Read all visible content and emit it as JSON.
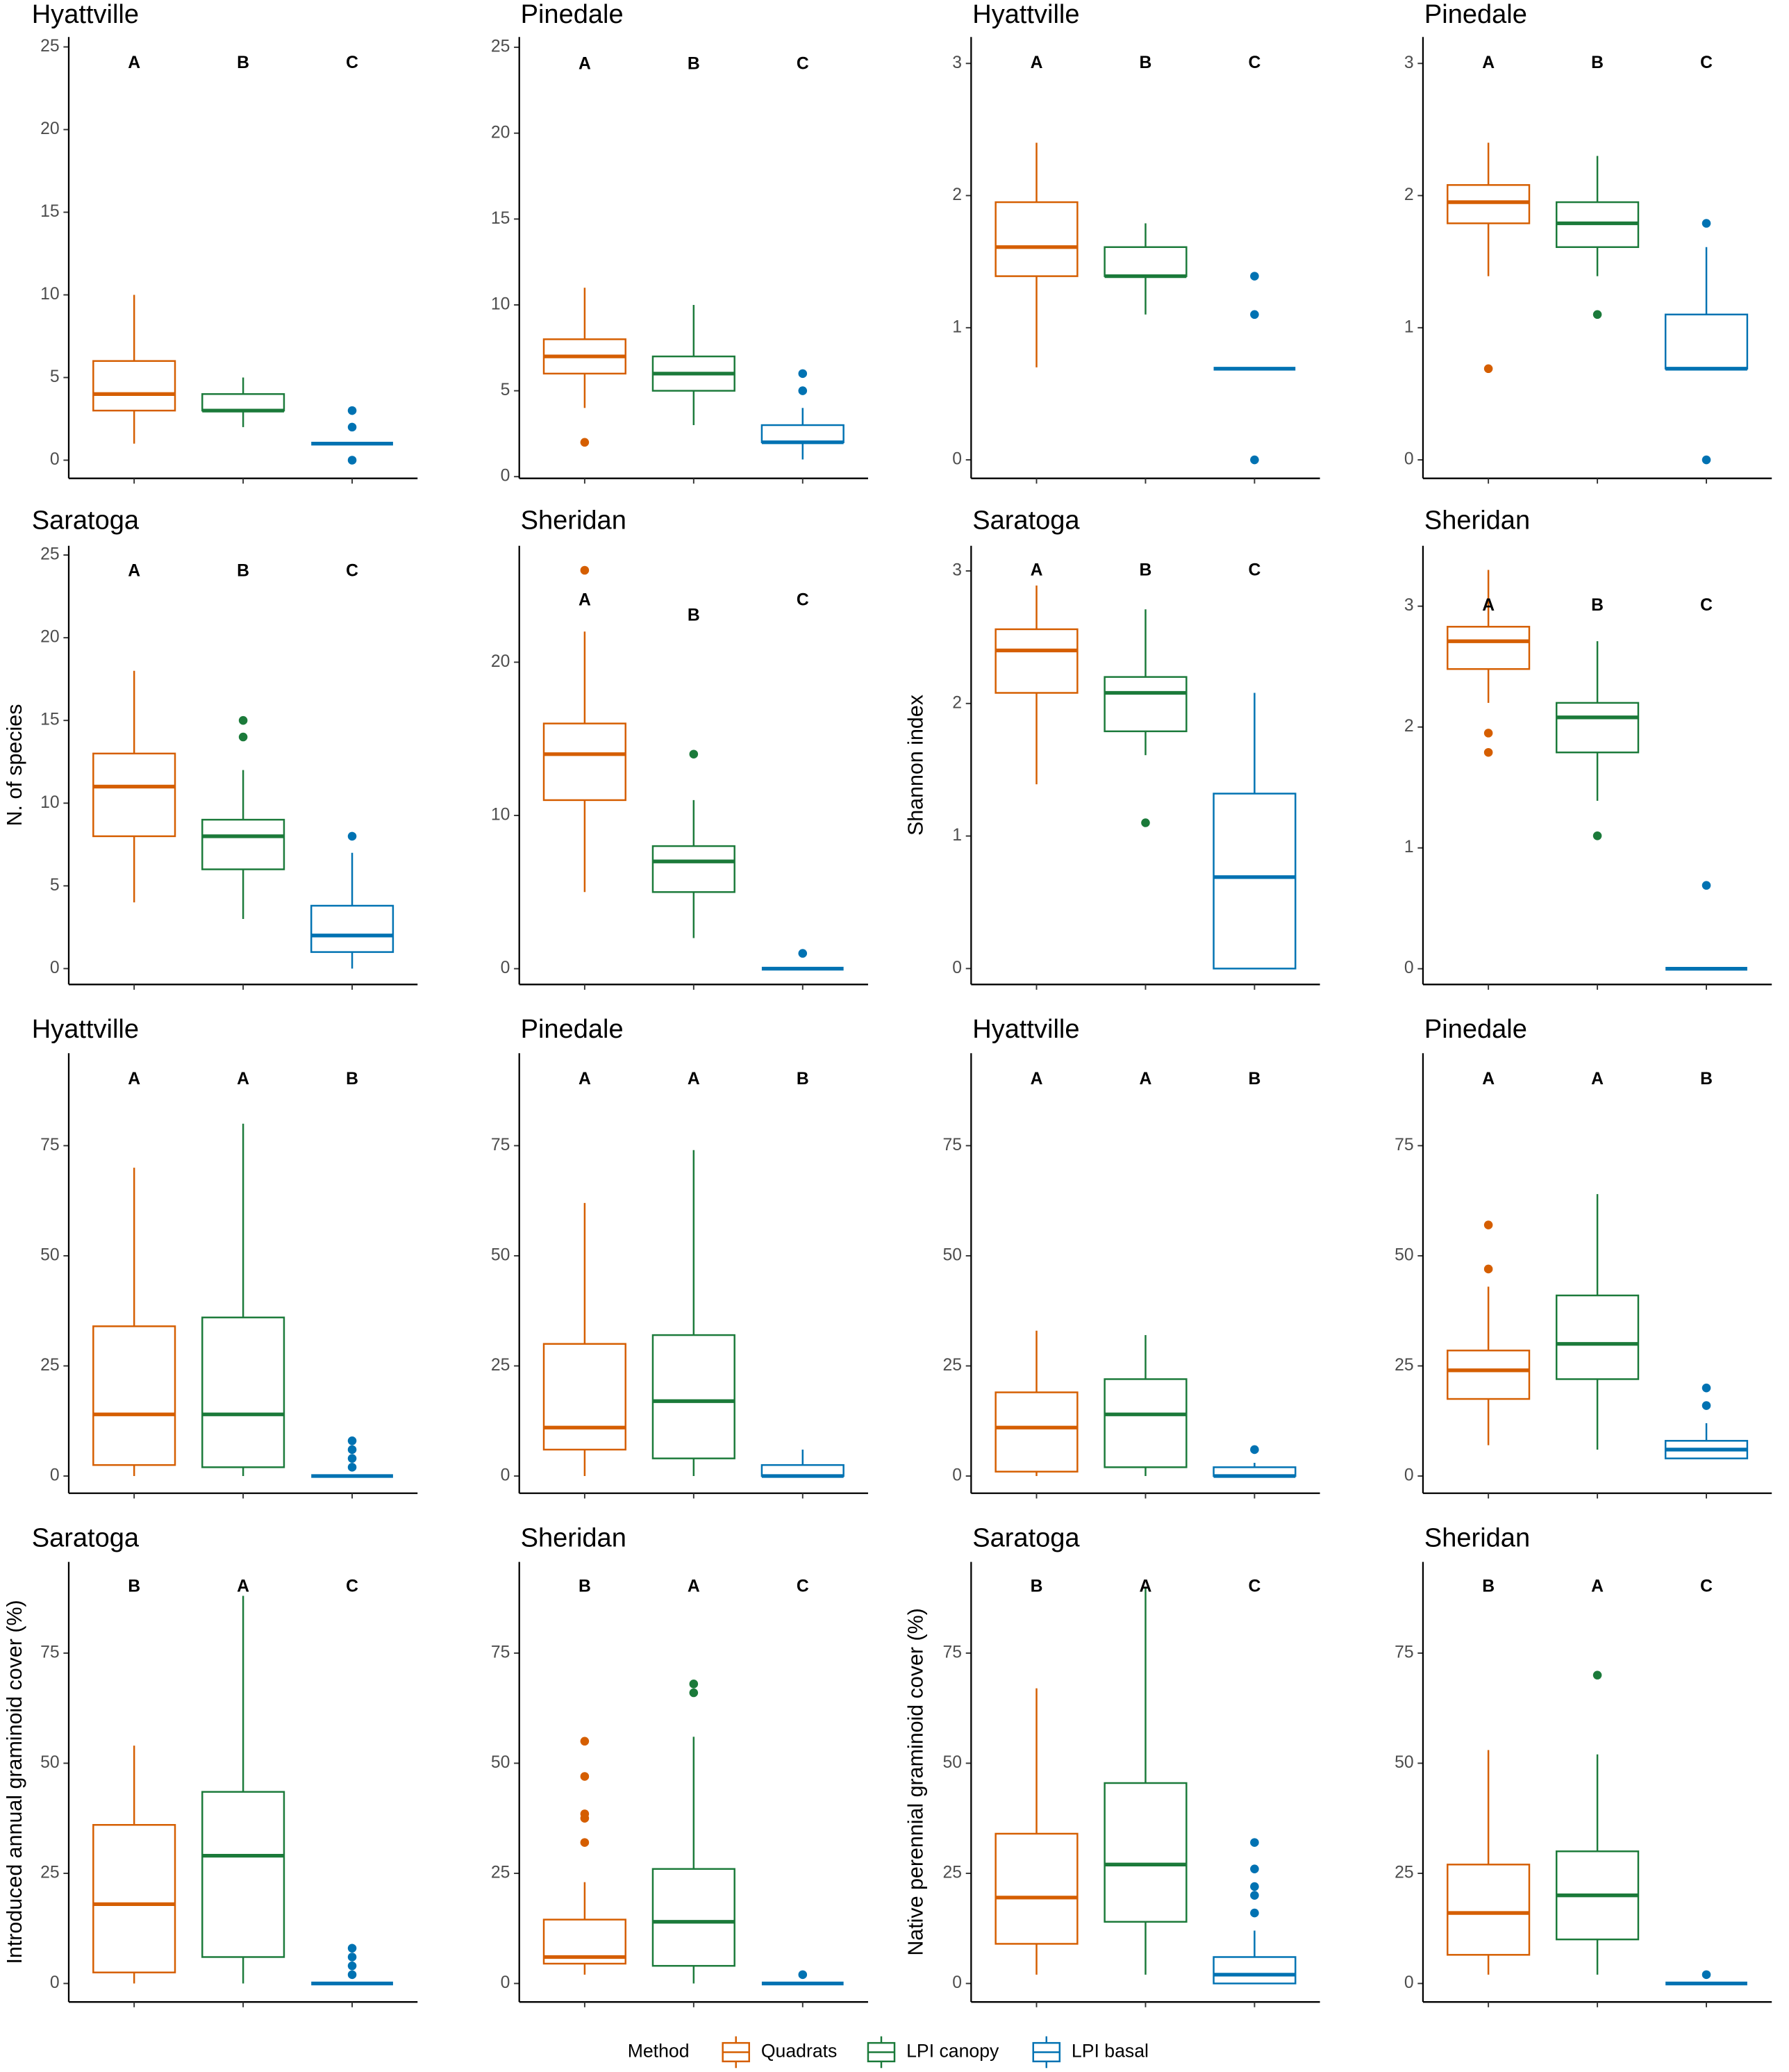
{
  "legend": {
    "title": "Method",
    "entries": [
      {
        "name": "Quadrats",
        "color": "#D55E00"
      },
      {
        "name": "LPI canopy",
        "color": "#1B7A3A"
      },
      {
        "name": "LPI basal",
        "color": "#0072B2"
      }
    ]
  },
  "chart_data": [
    {
      "type": "box",
      "title": "Hyattville",
      "ylim": [
        -1.1,
        25.6
      ],
      "yticks": [
        0,
        5,
        10,
        15,
        20,
        25
      ],
      "letters": [
        {
          "text": "A",
          "y": 24
        },
        {
          "text": "B",
          "y": 24
        },
        {
          "text": "C",
          "y": 24
        }
      ],
      "boxes": [
        {
          "min": 1,
          "q1": 3,
          "median": 4,
          "q3": 6,
          "max": 10,
          "outliers": []
        },
        {
          "min": 2,
          "q1": 3,
          "median": 3,
          "q3": 4,
          "max": 5,
          "outliers": []
        },
        {
          "min": 1,
          "q1": 1,
          "median": 1,
          "q3": 1,
          "max": 1,
          "outliers": [
            0,
            2,
            3
          ]
        }
      ]
    },
    {
      "type": "box",
      "title": "Pinedale",
      "ylim": [
        -0.1,
        25.6
      ],
      "yticks": [
        0,
        5,
        10,
        15,
        20,
        25
      ],
      "letters": [
        {
          "text": "A",
          "y": 24
        },
        {
          "text": "B",
          "y": 24
        },
        {
          "text": "C",
          "y": 24
        }
      ],
      "boxes": [
        {
          "min": 4,
          "q1": 6,
          "median": 7,
          "q3": 8,
          "max": 11,
          "outliers": [
            2
          ]
        },
        {
          "min": 3,
          "q1": 5,
          "median": 6,
          "q3": 7,
          "max": 10,
          "outliers": []
        },
        {
          "min": 1,
          "q1": 2,
          "median": 2,
          "q3": 3,
          "max": 4,
          "outliers": [
            5,
            6
          ]
        }
      ]
    },
    {
      "type": "box",
      "title": "Hyattville",
      "ylim": [
        -0.14,
        3.2
      ],
      "yticks": [
        0,
        1,
        2,
        3
      ],
      "letters": [
        {
          "text": "A",
          "y": 3
        },
        {
          "text": "B",
          "y": 3
        },
        {
          "text": "C",
          "y": 3
        }
      ],
      "boxes": [
        {
          "min": 0.7,
          "q1": 1.39,
          "median": 1.61,
          "q3": 1.95,
          "max": 2.4,
          "outliers": []
        },
        {
          "min": 1.1,
          "q1": 1.39,
          "median": 1.39,
          "q3": 1.61,
          "max": 1.79,
          "outliers": []
        },
        {
          "min": 0.69,
          "q1": 0.69,
          "median": 0.69,
          "q3": 0.69,
          "max": 0.69,
          "outliers": [
            0,
            1.1,
            1.39
          ]
        }
      ]
    },
    {
      "type": "box",
      "title": "Pinedale",
      "ylim": [
        -0.14,
        3.2
      ],
      "yticks": [
        0,
        1,
        2,
        3
      ],
      "letters": [
        {
          "text": "A",
          "y": 3
        },
        {
          "text": "B",
          "y": 3
        },
        {
          "text": "C",
          "y": 3
        }
      ],
      "boxes": [
        {
          "min": 1.39,
          "q1": 1.79,
          "median": 1.95,
          "q3": 2.08,
          "max": 2.4,
          "outliers": [
            0.69
          ]
        },
        {
          "min": 1.39,
          "q1": 1.61,
          "median": 1.79,
          "q3": 1.95,
          "max": 2.3,
          "outliers": [
            1.1
          ]
        },
        {
          "min": 0.69,
          "q1": 0.69,
          "median": 0.69,
          "q3": 1.1,
          "max": 1.61,
          "outliers": [
            0,
            1.79
          ]
        }
      ]
    },
    {
      "type": "box",
      "title": "Saratoga",
      "ylabel": "N. of species",
      "ylim": [
        -0.96,
        25.56
      ],
      "yticks": [
        0,
        5,
        10,
        15,
        20,
        25
      ],
      "letters": [
        {
          "text": "A",
          "y": 24
        },
        {
          "text": "B",
          "y": 24
        },
        {
          "text": "C",
          "y": 24
        }
      ],
      "boxes": [
        {
          "min": 4,
          "q1": 8,
          "median": 11,
          "q3": 13,
          "max": 18,
          "outliers": []
        },
        {
          "min": 3,
          "q1": 6,
          "median": 8,
          "q3": 9,
          "max": 12,
          "outliers": [
            14,
            15
          ]
        },
        {
          "min": 0,
          "q1": 1,
          "median": 2,
          "q3": 3.8,
          "max": 7,
          "outliers": [
            8
          ]
        }
      ]
    },
    {
      "type": "box",
      "title": "Sheridan",
      "ylim": [
        -1.03,
        27.6
      ],
      "yticks": [
        0,
        10,
        20
      ],
      "letters": [
        {
          "text": "A",
          "y": 24
        },
        {
          "text": "B",
          "y": 23
        },
        {
          "text": "C",
          "y": 24
        }
      ],
      "boxes": [
        {
          "min": 5,
          "q1": 11,
          "median": 14,
          "q3": 16,
          "max": 22,
          "outliers": [
            26
          ]
        },
        {
          "min": 2,
          "q1": 5,
          "median": 7,
          "q3": 8,
          "max": 11,
          "outliers": [
            14
          ]
        },
        {
          "min": 0,
          "q1": 0,
          "median": 0,
          "q3": 0,
          "max": 0,
          "outliers": [
            1
          ]
        }
      ]
    },
    {
      "type": "box",
      "title": "Saratoga",
      "ylabel": "Shannon index",
      "ylim": [
        -0.12,
        3.19
      ],
      "yticks": [
        0,
        1,
        2,
        3
      ],
      "letters": [
        {
          "text": "A",
          "y": 3
        },
        {
          "text": "B",
          "y": 3
        },
        {
          "text": "C",
          "y": 3
        }
      ],
      "boxes": [
        {
          "min": 1.39,
          "q1": 2.08,
          "median": 2.4,
          "q3": 2.56,
          "max": 2.89,
          "outliers": []
        },
        {
          "min": 1.61,
          "q1": 1.79,
          "median": 2.08,
          "q3": 2.2,
          "max": 2.71,
          "outliers": [
            1.1
          ]
        },
        {
          "min": 0,
          "q1": 0,
          "median": 0.69,
          "q3": 1.32,
          "max": 2.08,
          "outliers": []
        }
      ]
    },
    {
      "type": "box",
      "title": "Sheridan",
      "ylim": [
        -0.13,
        3.5
      ],
      "yticks": [
        0,
        1,
        2,
        3
      ],
      "letters": [
        {
          "text": "A",
          "y": 3
        },
        {
          "text": "B",
          "y": 3
        },
        {
          "text": "C",
          "y": 3
        }
      ],
      "boxes": [
        {
          "min": 2.2,
          "q1": 2.48,
          "median": 2.71,
          "q3": 2.83,
          "max": 3.3,
          "outliers": [
            1.79,
            1.95
          ]
        },
        {
          "min": 1.39,
          "q1": 1.79,
          "median": 2.08,
          "q3": 2.2,
          "max": 2.71,
          "outliers": [
            1.1
          ]
        },
        {
          "min": 0,
          "q1": 0,
          "median": 0,
          "q3": 0,
          "max": 0,
          "outliers": [
            0.69
          ]
        }
      ]
    },
    {
      "type": "box",
      "title": "Hyattville",
      "ylim": [
        -3.9,
        96
      ],
      "yticks": [
        0,
        25,
        50,
        75
      ],
      "letters": [
        {
          "text": "A",
          "y": 90
        },
        {
          "text": "A",
          "y": 90
        },
        {
          "text": "B",
          "y": 90
        }
      ],
      "boxes": [
        {
          "min": 0,
          "q1": 2.5,
          "median": 14,
          "q3": 34,
          "max": 70,
          "outliers": []
        },
        {
          "min": 0,
          "q1": 2,
          "median": 14,
          "q3": 36,
          "max": 80,
          "outliers": []
        },
        {
          "min": 0,
          "q1": 0,
          "median": 0,
          "q3": 0,
          "max": 0,
          "outliers": [
            2,
            4,
            6,
            8
          ]
        }
      ]
    },
    {
      "type": "box",
      "title": "Pinedale",
      "ylim": [
        -3.9,
        96
      ],
      "yticks": [
        0,
        25,
        50,
        75
      ],
      "letters": [
        {
          "text": "A",
          "y": 90
        },
        {
          "text": "A",
          "y": 90
        },
        {
          "text": "B",
          "y": 90
        }
      ],
      "boxes": [
        {
          "min": 0,
          "q1": 6,
          "median": 11,
          "q3": 30,
          "max": 62,
          "outliers": []
        },
        {
          "min": 0,
          "q1": 4,
          "median": 17,
          "q3": 32,
          "max": 74,
          "outliers": []
        },
        {
          "min": 0,
          "q1": 0,
          "median": 0,
          "q3": 2.5,
          "max": 6,
          "outliers": []
        }
      ]
    },
    {
      "type": "box",
      "title": "Hyattville",
      "ylim": [
        -3.9,
        96
      ],
      "yticks": [
        0,
        25,
        50,
        75
      ],
      "letters": [
        {
          "text": "A",
          "y": 90
        },
        {
          "text": "A",
          "y": 90
        },
        {
          "text": "B",
          "y": 90
        }
      ],
      "boxes": [
        {
          "min": 0,
          "q1": 1,
          "median": 11,
          "q3": 19,
          "max": 33,
          "outliers": []
        },
        {
          "min": 0,
          "q1": 2,
          "median": 14,
          "q3": 22,
          "max": 32,
          "outliers": []
        },
        {
          "min": 0,
          "q1": 0,
          "median": 0,
          "q3": 2,
          "max": 3,
          "outliers": [
            6
          ]
        }
      ]
    },
    {
      "type": "box",
      "title": "Pinedale",
      "ylim": [
        -3.9,
        96
      ],
      "yticks": [
        0,
        25,
        50,
        75
      ],
      "letters": [
        {
          "text": "A",
          "y": 90
        },
        {
          "text": "A",
          "y": 90
        },
        {
          "text": "B",
          "y": 90
        }
      ],
      "boxes": [
        {
          "min": 7,
          "q1": 17.5,
          "median": 24,
          "q3": 28.5,
          "max": 43,
          "outliers": [
            47,
            57
          ]
        },
        {
          "min": 6,
          "q1": 22,
          "median": 30,
          "q3": 41,
          "max": 64,
          "outliers": []
        },
        {
          "min": 4,
          "q1": 4,
          "median": 6,
          "q3": 8,
          "max": 12,
          "outliers": [
            16,
            20
          ]
        }
      ]
    },
    {
      "type": "box",
      "title": "Saratoga",
      "ylabel": "Introduced annual graminoid cover (%)",
      "ylim": [
        -4.2,
        95.7
      ],
      "yticks": [
        0,
        25,
        50,
        75
      ],
      "letters": [
        {
          "text": "B",
          "y": 90
        },
        {
          "text": "A",
          "y": 90
        },
        {
          "text": "C",
          "y": 90
        }
      ],
      "boxes": [
        {
          "min": 0,
          "q1": 2.5,
          "median": 18,
          "q3": 36,
          "max": 54,
          "outliers": []
        },
        {
          "min": 0,
          "q1": 6,
          "median": 29,
          "q3": 43.5,
          "max": 88,
          "outliers": []
        },
        {
          "min": 0,
          "q1": 0,
          "median": 0,
          "q3": 0,
          "max": 0,
          "outliers": [
            2,
            4,
            6,
            8
          ]
        }
      ]
    },
    {
      "type": "box",
      "title": "Sheridan",
      "ylim": [
        -4.2,
        95.7
      ],
      "yticks": [
        0,
        25,
        50,
        75
      ],
      "letters": [
        {
          "text": "B",
          "y": 90
        },
        {
          "text": "A",
          "y": 90
        },
        {
          "text": "C",
          "y": 90
        }
      ],
      "boxes": [
        {
          "min": 2,
          "q1": 4.5,
          "median": 6,
          "q3": 14.5,
          "max": 23,
          "outliers": [
            32,
            37.5,
            38.5,
            47,
            55
          ]
        },
        {
          "min": 0,
          "q1": 4,
          "median": 14,
          "q3": 26,
          "max": 56,
          "outliers": [
            66,
            68
          ]
        },
        {
          "min": 0,
          "q1": 0,
          "median": 0,
          "q3": 0,
          "max": 0,
          "outliers": [
            2
          ]
        }
      ]
    },
    {
      "type": "box",
      "title": "Saratoga",
      "ylabel": "Native perennial graminoid cover (%)",
      "ylim": [
        -4.2,
        95.7
      ],
      "yticks": [
        0,
        25,
        50,
        75
      ],
      "letters": [
        {
          "text": "B",
          "y": 90
        },
        {
          "text": "A",
          "y": 90
        },
        {
          "text": "C",
          "y": 90
        }
      ],
      "boxes": [
        {
          "min": 2,
          "q1": 9,
          "median": 19.5,
          "q3": 34,
          "max": 67,
          "outliers": []
        },
        {
          "min": 2,
          "q1": 14,
          "median": 27,
          "q3": 45.5,
          "max": 90,
          "outliers": []
        },
        {
          "min": 0,
          "q1": 0,
          "median": 2,
          "q3": 6,
          "max": 12,
          "outliers": [
            16,
            20,
            22,
            26,
            32
          ]
        }
      ]
    },
    {
      "type": "box",
      "title": "Sheridan",
      "ylim": [
        -4.2,
        95.7
      ],
      "yticks": [
        0,
        25,
        50,
        75
      ],
      "letters": [
        {
          "text": "B",
          "y": 90
        },
        {
          "text": "A",
          "y": 90
        },
        {
          "text": "C",
          "y": 90
        }
      ],
      "boxes": [
        {
          "min": 2,
          "q1": 6.5,
          "median": 16,
          "q3": 27,
          "max": 53,
          "outliers": []
        },
        {
          "min": 2,
          "q1": 10,
          "median": 20,
          "q3": 30,
          "max": 52,
          "outliers": [
            70
          ]
        },
        {
          "min": 0,
          "q1": 0,
          "median": 0,
          "q3": 0,
          "max": 0,
          "outliers": [
            2
          ]
        }
      ]
    }
  ]
}
